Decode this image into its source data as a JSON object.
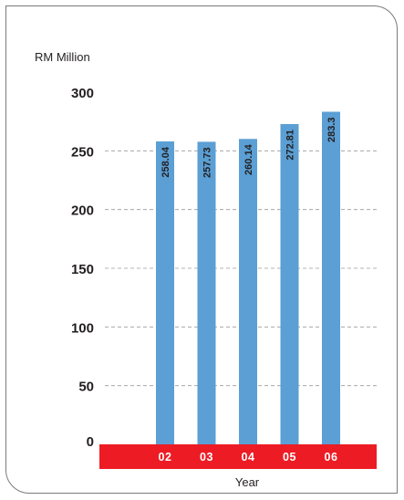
{
  "chart_data": {
    "type": "bar",
    "categories": [
      "02",
      "03",
      "04",
      "05",
      "06"
    ],
    "values": [
      258.04,
      257.73,
      260.14,
      272.81,
      283.3
    ],
    "data_labels": [
      "258.04",
      "257.73",
      "260.14",
      "272.81",
      "283.3"
    ],
    "ylabel": "RM Million",
    "xlabel": "Year",
    "ylim": [
      0,
      300
    ],
    "yticks": [
      "0",
      "50",
      "100",
      "150",
      "200",
      "250",
      "300"
    ],
    "grid": true,
    "colors": {
      "bar": "#5b9fd4",
      "axis_band": "#ed1c24",
      "grid": "#9a9a9a"
    }
  }
}
